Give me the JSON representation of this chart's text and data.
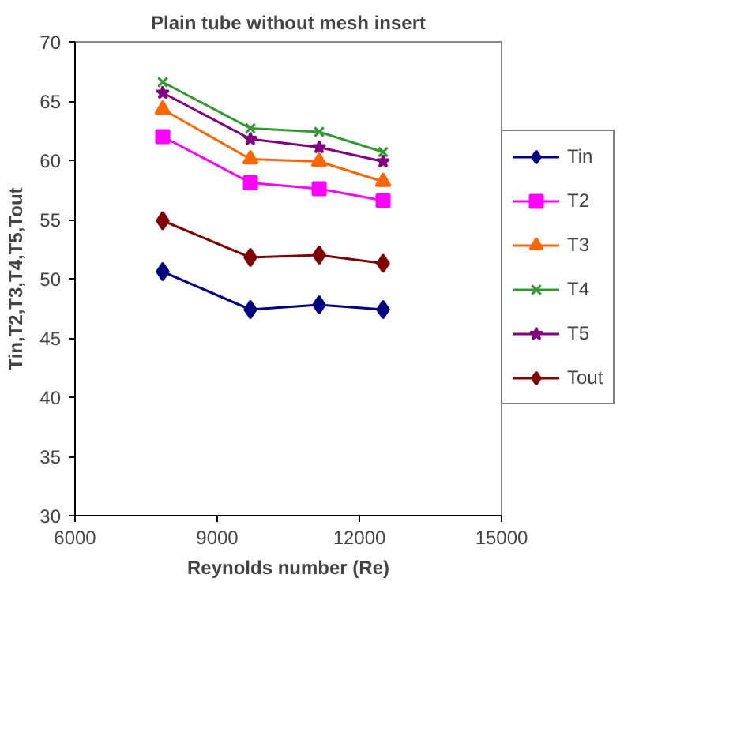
{
  "chart_data": {
    "type": "line",
    "title": "Plain tube without mesh insert",
    "xlabel": "Reynolds number (Re)",
    "ylabel": "Tin,T2,T3,T4,T5,Tout",
    "x": [
      7850,
      9700,
      11150,
      12500
    ],
    "series": [
      {
        "name": "Tin",
        "color": "#000080",
        "marker": "diamond",
        "values": [
          50.6,
          47.4,
          47.8,
          47.4
        ]
      },
      {
        "name": "T2",
        "color": "#ff00ff",
        "marker": "square",
        "values": [
          62.0,
          58.1,
          57.6,
          56.6
        ]
      },
      {
        "name": "T3",
        "color": "#ff6600",
        "marker": "triangle",
        "values": [
          64.3,
          60.1,
          59.9,
          58.2
        ]
      },
      {
        "name": "T4",
        "color": "#339933",
        "marker": "cross",
        "values": [
          66.6,
          62.7,
          62.4,
          60.7
        ]
      },
      {
        "name": "T5",
        "color": "#800080",
        "marker": "star",
        "values": [
          65.7,
          61.8,
          61.1,
          59.9
        ]
      },
      {
        "name": "Tout",
        "color": "#800000",
        "marker": "diamond",
        "values": [
          54.9,
          51.8,
          52.0,
          51.3
        ]
      }
    ],
    "xlim": [
      6000,
      15000
    ],
    "xticks": [
      6000,
      9000,
      12000,
      15000
    ],
    "ylim": [
      30,
      70
    ],
    "yticks": [
      30,
      35,
      40,
      45,
      50,
      55,
      60,
      65,
      70
    ],
    "grid": false,
    "legend": "right",
    "line_style": "solid"
  }
}
